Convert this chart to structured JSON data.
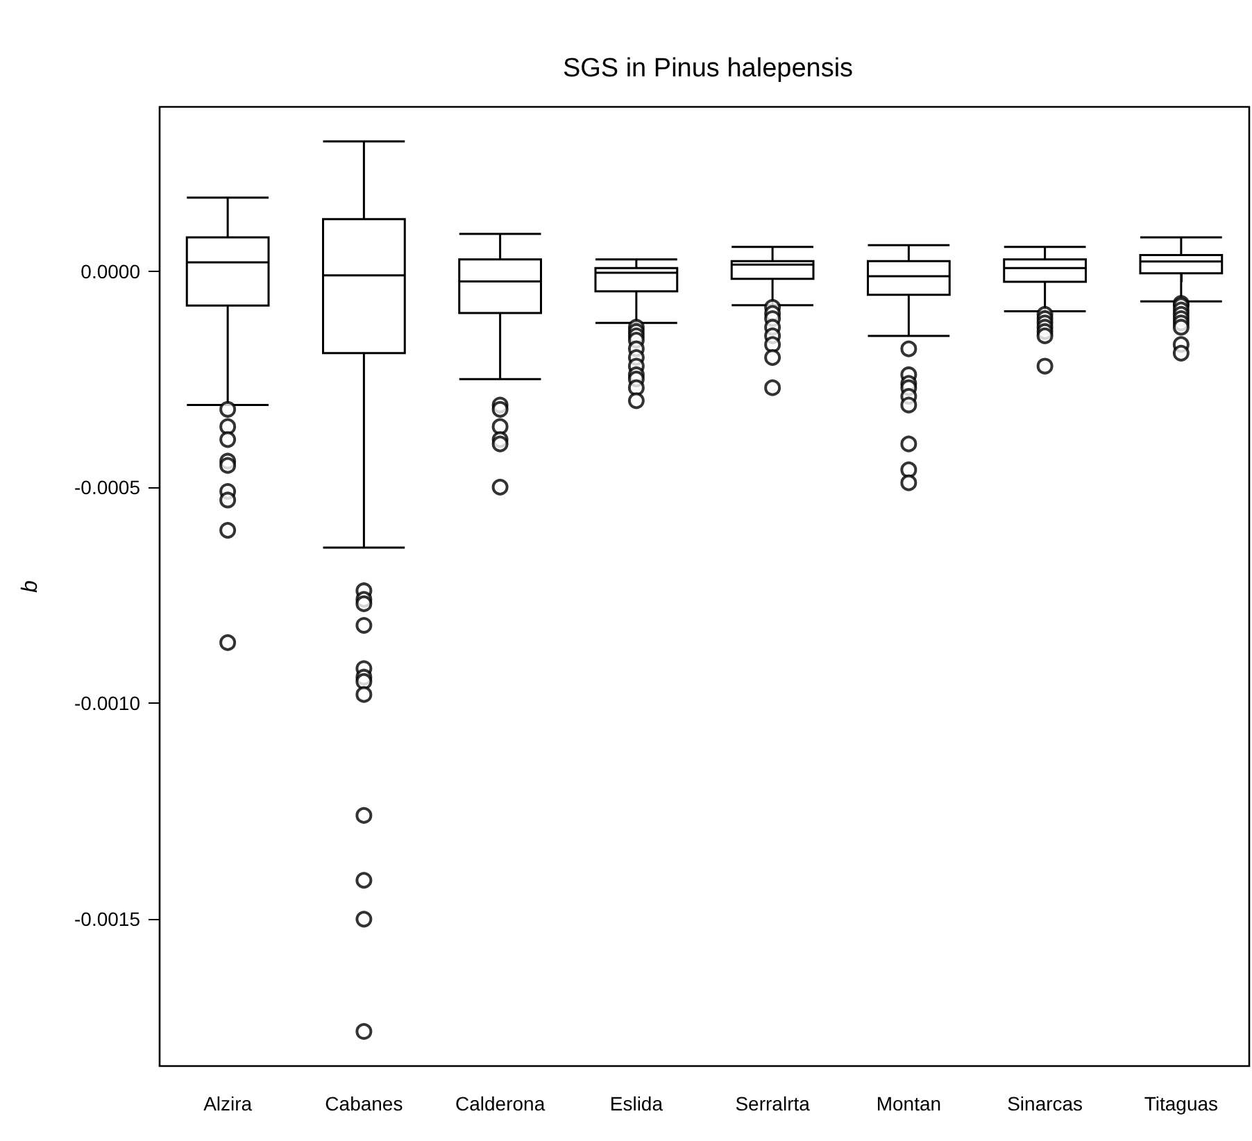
{
  "chart_data": {
    "type": "box",
    "title": "SGS in Pinus halepensis",
    "ylabel": "b",
    "categories": [
      "Alzira",
      "Cabanes",
      "Calderona",
      "Eslida",
      "Serralrta",
      "Montan",
      "Sinarcas",
      "Titaguas"
    ],
    "boxes": [
      {
        "low": -0.00031,
        "q1": -8e-05,
        "median": 2e-05,
        "q3": 7.8e-05,
        "high": 0.00017,
        "outliers": [
          -0.00032,
          -0.00036,
          -0.00039,
          -0.00044,
          -0.00045,
          -0.00051,
          -0.00053,
          -0.0006,
          -0.00086
        ]
      },
      {
        "low": -0.00064,
        "q1": -0.00019,
        "median": -1e-05,
        "q3": 0.00012,
        "high": 0.0003,
        "outliers": [
          -0.00074,
          -0.00076,
          -0.00077,
          -0.00082,
          -0.00092,
          -0.00094,
          -0.00095,
          -0.00098,
          -0.00126,
          -0.00141,
          -0.0015,
          -0.00176
        ]
      },
      {
        "low": -0.00025,
        "q1": -9.7e-05,
        "median": -2.4e-05,
        "q3": 2.7e-05,
        "high": 8.6e-05,
        "outliers": [
          -0.00031,
          -0.00032,
          -0.00036,
          -0.00039,
          -0.0004,
          -0.0005
        ]
      },
      {
        "low": -0.00012,
        "q1": -4.7e-05,
        "median": -4e-06,
        "q3": 7e-06,
        "high": 2.7e-05,
        "outliers": [
          -0.00013,
          -0.00014,
          -0.00015,
          -0.00016,
          -0.00018,
          -0.0002,
          -0.00022,
          -0.00024,
          -0.00025,
          -0.00027,
          -0.0003
        ]
      },
      {
        "low": -7.9e-05,
        "q1": -1.8e-05,
        "median": 1.5e-05,
        "q3": 2.3e-05,
        "high": 5.6e-05,
        "outliers": [
          -8.4e-05,
          -9.8e-05,
          -0.00011,
          -0.00013,
          -0.00015,
          -0.00017,
          -0.0002,
          -0.00027
        ]
      },
      {
        "low": -0.00015,
        "q1": -5.5e-05,
        "median": -1.2e-05,
        "q3": 2.3e-05,
        "high": 6e-05,
        "outliers": [
          -0.00018,
          -0.00024,
          -0.00026,
          -0.00027,
          -0.00029,
          -0.00031,
          -0.0004,
          -0.00046,
          -0.00049
        ]
      },
      {
        "low": -9.3e-05,
        "q1": -2.5e-05,
        "median": 7e-06,
        "q3": 2.7e-05,
        "high": 5.6e-05,
        "outliers": [
          -0.0001,
          -0.00011,
          -0.00012,
          -0.00013,
          -0.00014,
          -0.00015,
          -0.00022
        ]
      },
      {
        "low": -7e-05,
        "q1": -5e-06,
        "median": 2.2e-05,
        "q3": 3.7e-05,
        "high": 7.8e-05,
        "outliers": [
          -7.5e-05,
          -8e-05,
          -9e-05,
          -0.0001,
          -0.00011,
          -0.00012,
          -0.00013,
          -0.00017,
          -0.00019
        ]
      }
    ],
    "ylim": [
      -0.00184,
      0.00038
    ],
    "yticks": [
      {
        "value": -0.0015,
        "label": "-0.0015"
      },
      {
        "value": -0.001,
        "label": "-0.0010"
      },
      {
        "value": -0.0005,
        "label": "-0.0005"
      },
      {
        "value": 0,
        "label": "0.0000"
      }
    ],
    "grid": false,
    "marker": "circle"
  }
}
